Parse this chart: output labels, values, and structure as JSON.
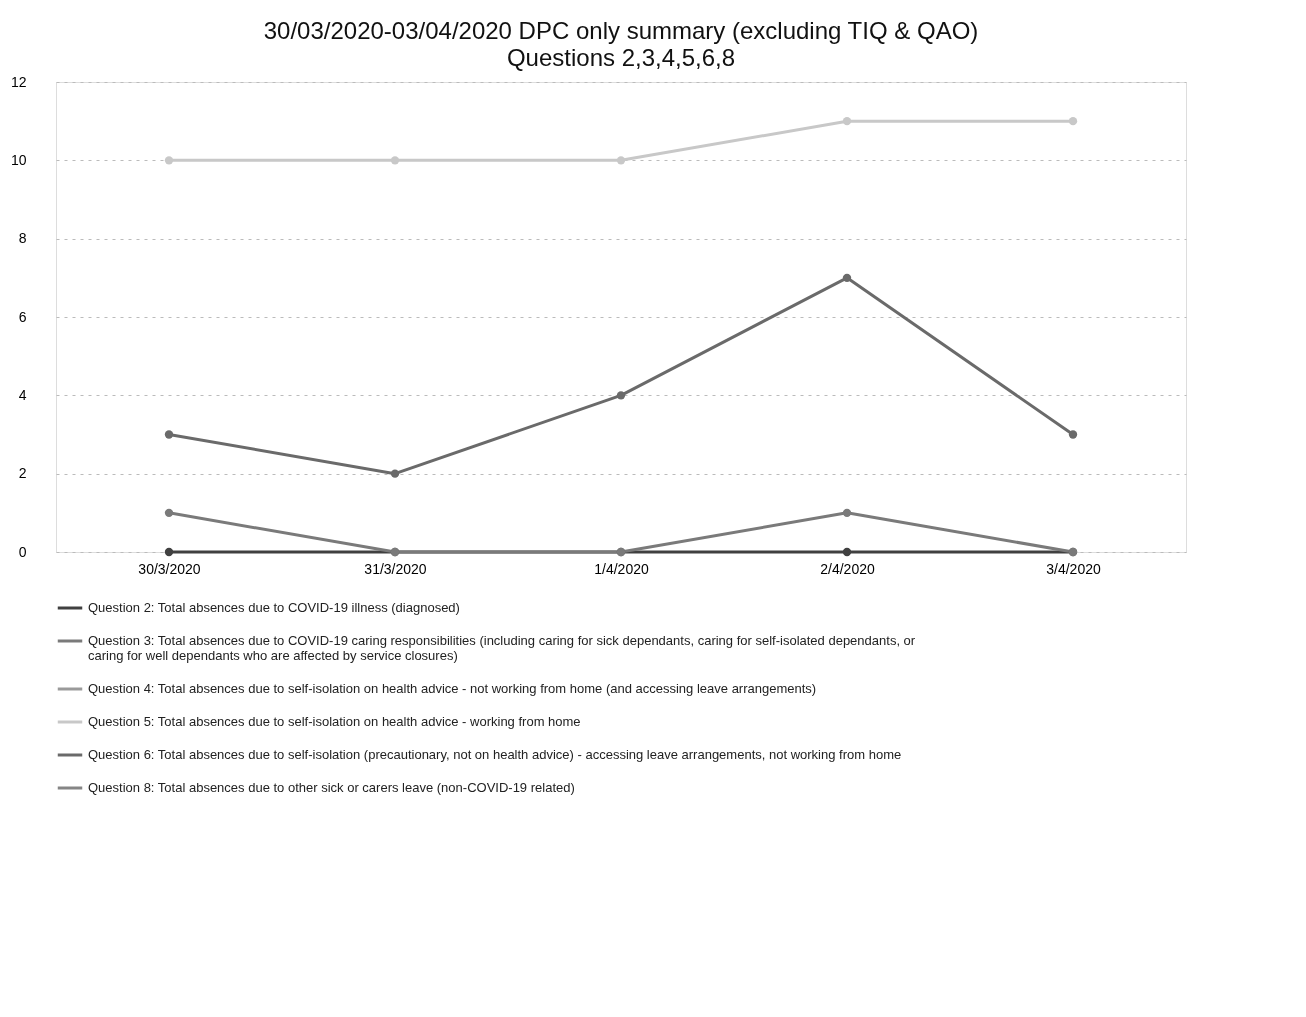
{
  "chart_data": {
    "type": "line",
    "title": "30/03/2020-03/04/2020 DPC only summary (excluding TIQ & QAO)",
    "subtitle": "Questions 2,3,4,5,6,8",
    "categories": [
      "30/3/2020",
      "31/3/2020",
      "1/4/2020",
      "2/4/2020",
      "3/4/2020"
    ],
    "series": [
      {
        "name": "Question 2: Total absences due to COVID-19 illness (diagnosed)",
        "color": "#404040",
        "values": [
          0,
          0,
          0,
          0,
          0
        ]
      },
      {
        "name": "Question 3: Total absences due to COVID-19 caring responsibilities (including caring for sick dependants, caring for self-isolated dependants, or caring for well dependants who are affected by service closures)",
        "color": "#7a7a7a",
        "values": [
          1,
          0,
          0,
          1,
          0
        ]
      },
      {
        "name": "Question 4: Total absences due to self-isolation on health advice - not working from home (and accessing leave arrangements)",
        "color": "#9a9a9a",
        "values": [
          null,
          null,
          null,
          null,
          null
        ]
      },
      {
        "name": "Question 5: Total absences due to self-isolation on health advice - working from home",
        "color": "#c8c8c8",
        "values": [
          10,
          10,
          10,
          11,
          11
        ]
      },
      {
        "name": "Question 6: Total absences due to self-isolation (precautionary, not on health advice) - accessing leave arrangements, not working from home",
        "color": "#6a6a6a",
        "values": [
          3,
          2,
          4,
          7,
          3
        ]
      },
      {
        "name": "Question 8: Total absences due to other sick or carers leave (non-COVID-19 related)",
        "color": "#858585",
        "values": [
          null,
          null,
          null,
          null,
          null
        ]
      }
    ],
    "ylim": [
      0,
      12
    ],
    "yticks": [
      0,
      2,
      4,
      6,
      8,
      10,
      12
    ],
    "grid": "y",
    "legend": "bottom",
    "marker": "circle",
    "line_style": "solid"
  }
}
